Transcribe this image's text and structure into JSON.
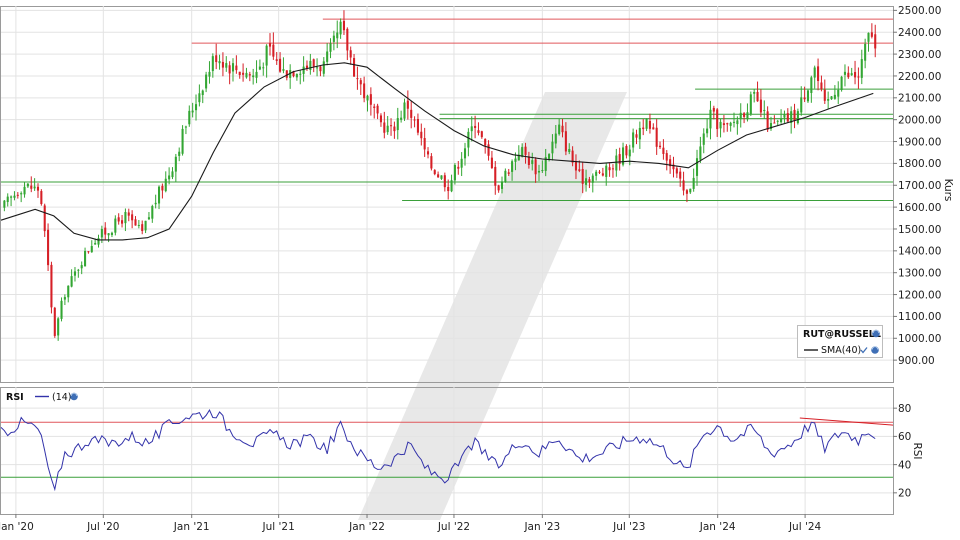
{
  "chart_data": [
    {
      "type": "candlestick",
      "ylabel": "Kurs",
      "ylim": [
        800,
        2520
      ],
      "yticks": [
        900,
        1000,
        1100,
        1200,
        1300,
        1400,
        1500,
        1600,
        1700,
        1800,
        1900,
        2000,
        2100,
        2200,
        2300,
        2400,
        2500
      ],
      "ytick_labels": [
        "900.00",
        "1000.00",
        "1100.00",
        "1200.00",
        "1300.00",
        "1400.00",
        "1500.00",
        "1600.00",
        "1700.00",
        "1800.00",
        "1900.00",
        "2000.00",
        "2100.00",
        "2200.00",
        "2300.00",
        "2400.00",
        "2500.00"
      ],
      "xlim": [
        "2019-12-01",
        "2024-12-31"
      ],
      "x_ticks": [
        "2020-01-01",
        "2020-07-01",
        "2021-01-01",
        "2021-07-01",
        "2022-01-01",
        "2022-07-01",
        "2023-01-01",
        "2023-07-01",
        "2024-01-01",
        "2024-07-01"
      ],
      "x_tick_labels": [
        "Jan '20",
        "Jul '20",
        "Jan '21",
        "Jul '21",
        "Jan '22",
        "Jul '22",
        "Jan '23",
        "Jul '23",
        "Jan '24",
        "Jul '24"
      ],
      "close_path": [
        [
          "2019-12-01",
          1590
        ],
        [
          "2020-01-15",
          1700
        ],
        [
          "2020-02-20",
          1680
        ],
        [
          "2020-03-05",
          1400
        ],
        [
          "2020-03-20",
          1000
        ],
        [
          "2020-04-10",
          1200
        ],
        [
          "2020-05-15",
          1350
        ],
        [
          "2020-06-10",
          1450
        ],
        [
          "2020-07-15",
          1500
        ],
        [
          "2020-08-15",
          1560
        ],
        [
          "2020-09-20",
          1480
        ],
        [
          "2020-10-15",
          1620
        ],
        [
          "2020-11-20",
          1780
        ],
        [
          "2020-12-20",
          1980
        ],
        [
          "2021-01-20",
          2150
        ],
        [
          "2021-02-20",
          2300
        ],
        [
          "2021-03-20",
          2250
        ],
        [
          "2021-05-10",
          2200
        ],
        [
          "2021-06-10",
          2320
        ],
        [
          "2021-07-10",
          2220
        ],
        [
          "2021-08-20",
          2250
        ],
        [
          "2021-10-05",
          2250
        ],
        [
          "2021-11-08",
          2420
        ],
        [
          "2021-12-10",
          2200
        ],
        [
          "2022-01-20",
          2000
        ],
        [
          "2022-02-20",
          1950
        ],
        [
          "2022-03-25",
          2080
        ],
        [
          "2022-05-10",
          1800
        ],
        [
          "2022-06-20",
          1700
        ],
        [
          "2022-08-15",
          2000
        ],
        [
          "2022-09-30",
          1690
        ],
        [
          "2022-11-15",
          1870
        ],
        [
          "2022-12-25",
          1760
        ],
        [
          "2023-02-05",
          1960
        ],
        [
          "2023-03-20",
          1730
        ],
        [
          "2023-05-15",
          1760
        ],
        [
          "2023-06-30",
          1880
        ],
        [
          "2023-07-30",
          1990
        ],
        [
          "2023-09-15",
          1850
        ],
        [
          "2023-10-28",
          1640
        ],
        [
          "2023-12-15",
          2020
        ],
        [
          "2024-01-20",
          1950
        ],
        [
          "2024-03-15",
          2100
        ],
        [
          "2024-04-20",
          1960
        ],
        [
          "2024-06-15",
          2030
        ],
        [
          "2024-07-20",
          2250
        ],
        [
          "2024-08-10",
          2050
        ],
        [
          "2024-09-15",
          2200
        ],
        [
          "2024-10-20",
          2200
        ],
        [
          "2024-11-15",
          2420
        ],
        [
          "2024-11-25",
          2300
        ]
      ],
      "sma_name": "SMA(40)",
      "sma_path": [
        [
          "2019-12-01",
          1540
        ],
        [
          "2020-02-10",
          1590
        ],
        [
          "2020-03-20",
          1560
        ],
        [
          "2020-05-01",
          1480
        ],
        [
          "2020-06-20",
          1450
        ],
        [
          "2020-08-10",
          1450
        ],
        [
          "2020-10-01",
          1460
        ],
        [
          "2020-11-15",
          1500
        ],
        [
          "2021-01-01",
          1650
        ],
        [
          "2021-02-15",
          1850
        ],
        [
          "2021-04-01",
          2030
        ],
        [
          "2021-06-01",
          2150
        ],
        [
          "2021-08-01",
          2220
        ],
        [
          "2021-10-01",
          2250
        ],
        [
          "2021-11-15",
          2260
        ],
        [
          "2022-01-01",
          2240
        ],
        [
          "2022-03-01",
          2140
        ],
        [
          "2022-05-01",
          2040
        ],
        [
          "2022-07-01",
          1950
        ],
        [
          "2022-09-01",
          1880
        ],
        [
          "2022-11-01",
          1840
        ],
        [
          "2023-01-01",
          1820
        ],
        [
          "2023-03-01",
          1810
        ],
        [
          "2023-05-01",
          1800
        ],
        [
          "2023-07-01",
          1810
        ],
        [
          "2023-09-01",
          1800
        ],
        [
          "2023-11-01",
          1780
        ],
        [
          "2024-01-01",
          1860
        ],
        [
          "2024-03-01",
          1930
        ],
        [
          "2024-05-01",
          1970
        ],
        [
          "2024-07-01",
          2010
        ],
        [
          "2024-09-01",
          2060
        ],
        [
          "2024-11-20",
          2120
        ]
      ],
      "horizontal_lines": [
        {
          "y": 2460,
          "color": "#e0575b",
          "from": "2021-10-01"
        },
        {
          "y": 2350,
          "color": "#e0575b",
          "from": "2021-01-01"
        },
        {
          "y": 2140,
          "color": "#3a9f3a",
          "from": "2023-11-15"
        },
        {
          "y": 2025,
          "color": "#3a9f3a",
          "from": "2022-06-01"
        },
        {
          "y": 2005,
          "color": "#3a9f3a",
          "from": "2022-06-01"
        },
        {
          "y": 1715,
          "color": "#3a9f3a",
          "from": "2019-12-01"
        },
        {
          "y": 1630,
          "color": "#3a9f3a",
          "from": "2022-03-15"
        }
      ],
      "legend": {
        "position": "bottom-right",
        "symbol": "RUT@RUSSELL",
        "sma": "SMA(40)"
      },
      "colors": {
        "up": "#33a633",
        "down": "#d61f26",
        "sma": "#1a1a1a"
      }
    },
    {
      "type": "line",
      "title": "RSI",
      "ylabel": "RSI",
      "ylim": [
        5,
        95
      ],
      "yticks": [
        20,
        40,
        60,
        80
      ],
      "series": [
        {
          "name": "(14)",
          "color": "#3333aa"
        }
      ],
      "rsi_path": [
        [
          "2019-12-01",
          62
        ],
        [
          "2020-01-15",
          70
        ],
        [
          "2020-02-15",
          66
        ],
        [
          "2020-03-01",
          50
        ],
        [
          "2020-03-20",
          18
        ],
        [
          "2020-04-10",
          48
        ],
        [
          "2020-05-01",
          50
        ],
        [
          "2020-06-01",
          58
        ],
        [
          "2020-07-15",
          55
        ],
        [
          "2020-09-01",
          60
        ],
        [
          "2020-10-01",
          55
        ],
        [
          "2020-11-15",
          68
        ],
        [
          "2020-12-15",
          74
        ],
        [
          "2021-01-20",
          76
        ],
        [
          "2021-02-20",
          78
        ],
        [
          "2021-03-20",
          65
        ],
        [
          "2021-05-10",
          55
        ],
        [
          "2021-06-15",
          62
        ],
        [
          "2021-07-20",
          55
        ],
        [
          "2021-09-01",
          58
        ],
        [
          "2021-10-10",
          52
        ],
        [
          "2021-11-08",
          67
        ],
        [
          "2021-12-15",
          48
        ],
        [
          "2022-01-25",
          38
        ],
        [
          "2022-03-01",
          45
        ],
        [
          "2022-04-01",
          53
        ],
        [
          "2022-05-10",
          35
        ],
        [
          "2022-06-20",
          30
        ],
        [
          "2022-08-10",
          56
        ],
        [
          "2022-09-30",
          38
        ],
        [
          "2022-11-15",
          58
        ],
        [
          "2022-12-25",
          48
        ],
        [
          "2023-02-01",
          60
        ],
        [
          "2023-03-20",
          44
        ],
        [
          "2023-05-01",
          48
        ],
        [
          "2023-06-30",
          58
        ],
        [
          "2023-08-01",
          60
        ],
        [
          "2023-09-15",
          50
        ],
        [
          "2023-10-28",
          35
        ],
        [
          "2023-12-01",
          62
        ],
        [
          "2024-01-01",
          68
        ],
        [
          "2024-02-01",
          58
        ],
        [
          "2024-03-15",
          66
        ],
        [
          "2024-04-20",
          48
        ],
        [
          "2024-06-01",
          55
        ],
        [
          "2024-07-15",
          70
        ],
        [
          "2024-08-10",
          52
        ],
        [
          "2024-09-15",
          64
        ],
        [
          "2024-10-20",
          58
        ],
        [
          "2024-11-12",
          66
        ],
        [
          "2024-11-25",
          60
        ]
      ],
      "thresholds": [
        {
          "y": 70,
          "color": "#e0575b"
        },
        {
          "y": 31,
          "color": "#3a9f3a"
        }
      ],
      "divergence_line": [
        [
          "2024-06-20",
          73
        ],
        [
          "2024-12-31",
          68
        ]
      ]
    }
  ],
  "legend_labels": {
    "symbol": "RUT@RUSSELL",
    "sma": "SMA(40)",
    "rsi_title": "RSI",
    "rsi_period": "(14)"
  }
}
